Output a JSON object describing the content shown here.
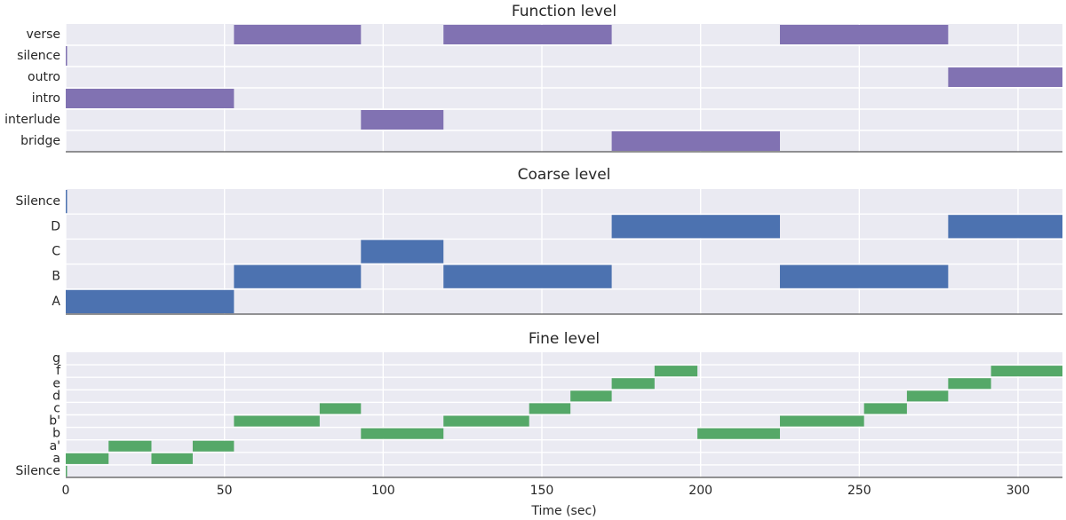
{
  "chart_data": [
    {
      "type": "segments",
      "title": "Function level",
      "color": "#8172b2",
      "xlim": [
        0,
        314
      ],
      "labels": [
        "verse",
        "silence",
        "outro",
        "intro",
        "interlude",
        "bridge"
      ],
      "segments": [
        {
          "label": "intro",
          "start": 0,
          "end": 53
        },
        {
          "label": "silence",
          "start": 0,
          "end": 0.4
        },
        {
          "label": "verse",
          "start": 53,
          "end": 93
        },
        {
          "label": "interlude",
          "start": 93,
          "end": 119
        },
        {
          "label": "verse",
          "start": 119,
          "end": 172
        },
        {
          "label": "bridge",
          "start": 172,
          "end": 225
        },
        {
          "label": "verse",
          "start": 225,
          "end": 278
        },
        {
          "label": "outro",
          "start": 278,
          "end": 314
        }
      ]
    },
    {
      "type": "segments",
      "title": "Coarse level",
      "color": "#4c72b0",
      "xlim": [
        0,
        314
      ],
      "labels": [
        "Silence",
        "D",
        "C",
        "B",
        "A"
      ],
      "segments": [
        {
          "label": "Silence",
          "start": 0,
          "end": 0.4
        },
        {
          "label": "A",
          "start": 0,
          "end": 53
        },
        {
          "label": "B",
          "start": 53,
          "end": 93
        },
        {
          "label": "C",
          "start": 93,
          "end": 119
        },
        {
          "label": "B",
          "start": 119,
          "end": 172
        },
        {
          "label": "D",
          "start": 172,
          "end": 225
        },
        {
          "label": "B",
          "start": 225,
          "end": 278
        },
        {
          "label": "D",
          "start": 278,
          "end": 314
        }
      ]
    },
    {
      "type": "segments",
      "title": "Fine level",
      "color": "#55a868",
      "xlim": [
        0,
        314
      ],
      "xlabel": "Time (sec)",
      "xticks": [
        0,
        50,
        100,
        150,
        200,
        250,
        300
      ],
      "labels": [
        "g",
        "f",
        "e",
        "d",
        "c",
        "b'",
        "b",
        "a'",
        "a",
        "Silence"
      ],
      "segments": [
        {
          "label": "Silence",
          "start": 0,
          "end": 0.4
        },
        {
          "label": "a",
          "start": 0,
          "end": 13.5
        },
        {
          "label": "a'",
          "start": 13.5,
          "end": 27
        },
        {
          "label": "a",
          "start": 27,
          "end": 40
        },
        {
          "label": "a'",
          "start": 40,
          "end": 53
        },
        {
          "label": "b'",
          "start": 53,
          "end": 80
        },
        {
          "label": "c",
          "start": 80,
          "end": 93
        },
        {
          "label": "b",
          "start": 93,
          "end": 119
        },
        {
          "label": "b'",
          "start": 119,
          "end": 146
        },
        {
          "label": "c",
          "start": 146,
          "end": 159
        },
        {
          "label": "d",
          "start": 159,
          "end": 172
        },
        {
          "label": "e",
          "start": 172,
          "end": 185.5
        },
        {
          "label": "f",
          "start": 185.5,
          "end": 199
        },
        {
          "label": "b",
          "start": 199,
          "end": 225
        },
        {
          "label": "b'",
          "start": 225,
          "end": 251.5
        },
        {
          "label": "c",
          "start": 251.5,
          "end": 265
        },
        {
          "label": "d",
          "start": 265,
          "end": 278
        },
        {
          "label": "e",
          "start": 278,
          "end": 291.5
        },
        {
          "label": "f",
          "start": 291.5,
          "end": 314
        }
      ]
    }
  ]
}
